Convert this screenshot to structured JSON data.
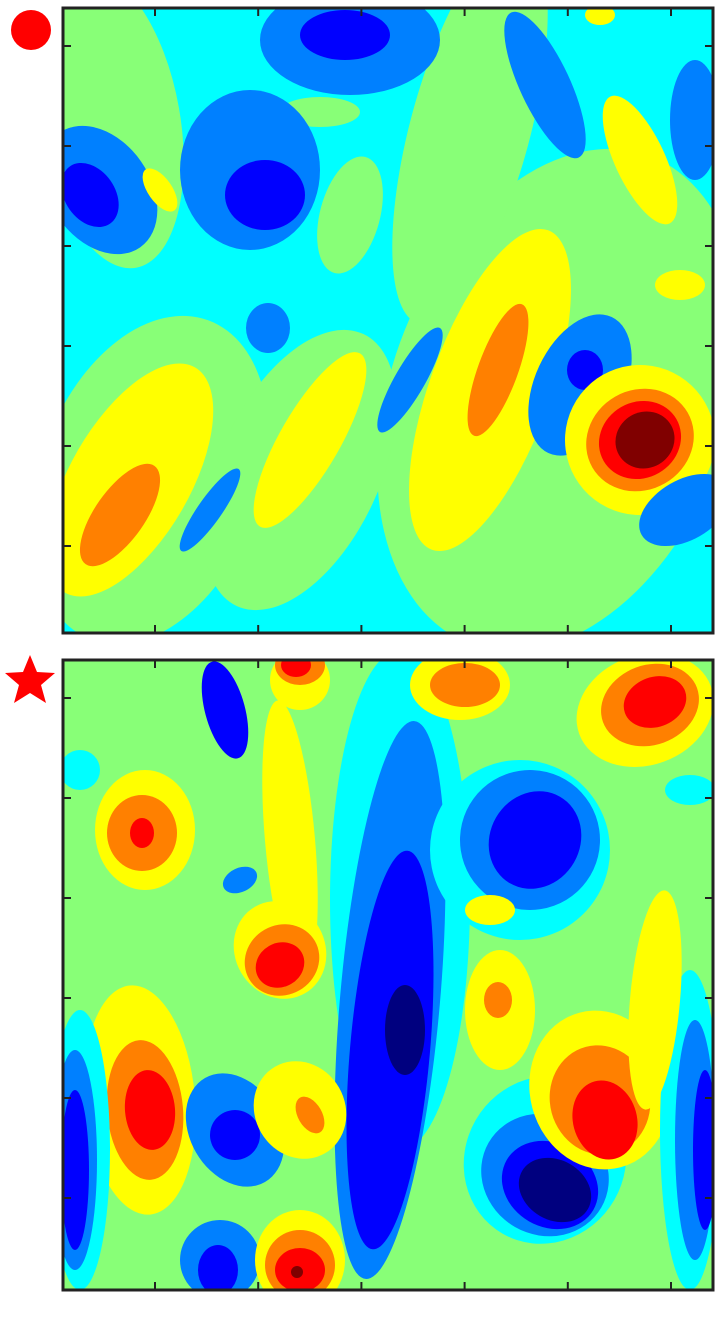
{
  "chart_data": [
    {
      "type": "contour",
      "colors": [
        "#00007f",
        "#0000ff",
        "#0080ff",
        "#00ffff",
        "#88ff77",
        "#ffff00",
        "#ff8000",
        "#ff0000",
        "#800000"
      ]
    },
    {
      "type": "contour",
      "colors": [
        "#00007f",
        "#0000ff",
        "#0080ff",
        "#00ffff",
        "#88ff77",
        "#ffff00",
        "#ff8000",
        "#ff0000",
        "#800000"
      ]
    }
  ]
}
